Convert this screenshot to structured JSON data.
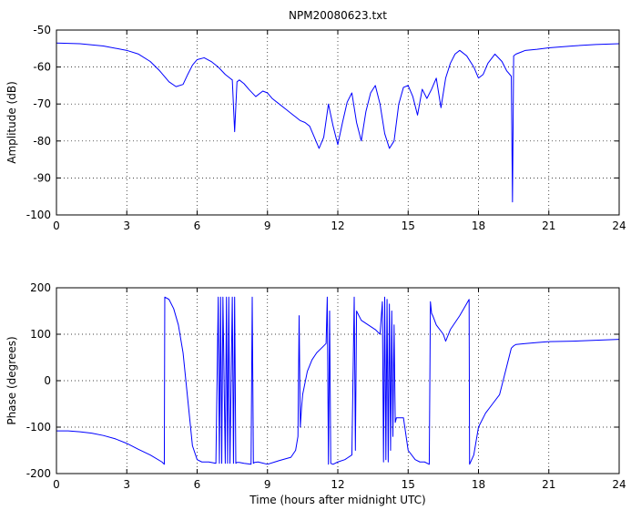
{
  "figure": {
    "title": "NPM20080623.txt"
  },
  "chart_data": [
    {
      "type": "line",
      "title": "NPM20080623.txt",
      "xlabel": "",
      "ylabel": "Amplitude (dB)",
      "xlim": [
        0,
        24
      ],
      "ylim": [
        -100,
        -50
      ],
      "xticks": [
        "0",
        "3",
        "6",
        "9",
        "12",
        "15",
        "18",
        "21",
        "24"
      ],
      "yticks": [
        "-50",
        "-60",
        "-70",
        "-80",
        "-90",
        "-100"
      ],
      "grid": true,
      "color": "#0000ff",
      "series": [
        {
          "x": [
            0,
            1,
            2,
            3,
            3.5,
            4,
            4.4,
            4.8,
            5.1,
            5.4,
            5.6,
            5.8,
            6.0,
            6.3,
            6.6,
            6.9,
            7.2,
            7.5,
            7.6,
            7.7,
            7.8,
            8.0,
            8.2,
            8.5,
            8.8,
            9.0,
            9.2,
            9.5,
            9.8,
            10.0,
            10.2,
            10.4,
            10.6,
            10.8,
            11.0,
            11.2,
            11.4,
            11.6,
            11.8,
            12.0,
            12.2,
            12.4,
            12.6,
            12.8,
            13.0,
            13.2,
            13.4,
            13.6,
            13.8,
            14.0,
            14.2,
            14.4,
            14.6,
            14.8,
            15.0,
            15.2,
            15.4,
            15.6,
            15.8,
            16.0,
            16.2,
            16.4,
            16.6,
            16.8,
            17.0,
            17.2,
            17.5,
            17.8,
            18.0,
            18.2,
            18.4,
            18.7,
            19.0,
            19.2,
            19.4,
            19.45,
            19.5,
            19.6,
            19.8,
            20.0,
            20.5,
            21.0,
            22.0,
            23.0,
            24.0
          ],
          "y": [
            -53.5,
            -53.7,
            -54.3,
            -55.5,
            -56.5,
            -58.5,
            -61,
            -64,
            -65.3,
            -64.7,
            -62,
            -59.5,
            -58,
            -57.5,
            -58.5,
            -60,
            -62,
            -63.5,
            -77.5,
            -64,
            -63.5,
            -64.5,
            -66,
            -68,
            -66.5,
            -67,
            -68.5,
            -70,
            -71.5,
            -72.5,
            -73.5,
            -74.5,
            -75,
            -76,
            -79,
            -82,
            -79,
            -70,
            -76,
            -81,
            -75,
            -69.5,
            -67,
            -75,
            -80,
            -72,
            -67,
            -65,
            -70,
            -78,
            -82,
            -80,
            -70,
            -65.5,
            -65,
            -68,
            -73,
            -66,
            -68.5,
            -66,
            -63,
            -71,
            -63,
            -59,
            -56.5,
            -55.5,
            -57,
            -60,
            -63,
            -62,
            -59,
            -56.5,
            -58.5,
            -61,
            -62.5,
            -96.5,
            -57,
            -56.5,
            -56,
            -55.5,
            -55.2,
            -54.8,
            -54.3,
            -53.9,
            -53.7
          ]
        }
      ]
    },
    {
      "type": "line",
      "title": "",
      "xlabel": "Time (hours after midnight UTC)",
      "ylabel": "Phase (degrees)",
      "xlim": [
        0,
        24
      ],
      "ylim": [
        -200,
        200
      ],
      "xticks": [
        "0",
        "3",
        "6",
        "9",
        "12",
        "15",
        "18",
        "21",
        "24"
      ],
      "yticks": [
        "200",
        "100",
        "0",
        "-100",
        "-200"
      ],
      "grid": true,
      "color": "#0000ff",
      "series": [
        {
          "x": [
            0,
            0.5,
            1,
            1.5,
            2,
            2.5,
            3,
            3.5,
            4,
            4.5,
            4.6,
            4.62,
            4.8,
            5.0,
            5.2,
            5.4,
            5.6,
            5.8,
            6.0,
            6.2,
            6.5,
            6.8,
            6.9,
            6.95,
            7.0,
            7.05,
            7.1,
            7.2,
            7.25,
            7.3,
            7.35,
            7.4,
            7.5,
            7.55,
            7.6,
            7.65,
            7.7,
            7.8,
            8.0,
            8.3,
            8.35,
            8.4,
            8.45,
            8.6,
            9.0,
            9.5,
            10.0,
            10.2,
            10.3,
            10.35,
            10.4,
            10.45,
            10.5,
            10.7,
            10.9,
            11.1,
            11.3,
            11.5,
            11.55,
            11.6,
            11.65,
            11.7,
            11.8,
            12.0,
            12.3,
            12.6,
            12.7,
            12.75,
            12.8,
            13.0,
            13.3,
            13.6,
            13.8,
            13.9,
            13.95,
            14.0,
            14.05,
            14.1,
            14.15,
            14.2,
            14.25,
            14.3,
            14.35,
            14.4,
            14.45,
            14.5,
            14.6,
            14.8,
            15.0,
            15.3,
            15.5,
            15.7,
            15.9,
            15.95,
            16.0,
            16.05,
            16.2,
            16.5,
            16.6,
            16.8,
            17.2,
            17.6,
            17.62,
            17.8,
            18.0,
            18.3,
            18.6,
            18.9,
            19.2,
            19.4,
            19.5,
            19.6,
            20.0,
            20.5,
            21.0,
            22.0,
            23.0,
            24.0
          ],
          "y": [
            -108,
            -108,
            -110,
            -113,
            -118,
            -125,
            -135,
            -148,
            -160,
            -175,
            -180,
            180,
            175,
            155,
            120,
            60,
            -40,
            -140,
            -170,
            -175,
            -175,
            -178,
            180,
            -178,
            180,
            -178,
            180,
            -178,
            180,
            -178,
            180,
            -178,
            180,
            -178,
            180,
            -178,
            -176,
            -176,
            -178,
            -180,
            180,
            -178,
            -176,
            -175,
            -180,
            -172,
            -165,
            -150,
            -120,
            140,
            -100,
            -60,
            -30,
            20,
            45,
            60,
            70,
            80,
            180,
            -180,
            150,
            -178,
            -180,
            -175,
            -170,
            -160,
            180,
            -150,
            150,
            130,
            120,
            110,
            100,
            170,
            -175,
            180,
            -170,
            175,
            -175,
            165,
            -150,
            150,
            -120,
            120,
            -90,
            -80,
            -80,
            -80,
            -150,
            -170,
            -175,
            -175,
            -180,
            170,
            145,
            140,
            120,
            100,
            85,
            110,
            140,
            175,
            -180,
            -160,
            -100,
            -70,
            -50,
            -30,
            30,
            70,
            75,
            78,
            80,
            82,
            84,
            85,
            87,
            89
          ]
        }
      ]
    }
  ]
}
